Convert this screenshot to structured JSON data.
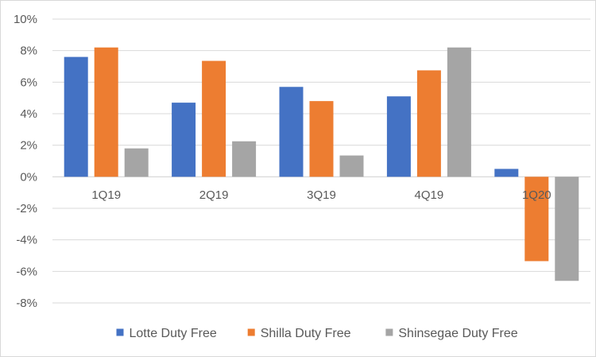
{
  "chart_data": {
    "type": "bar",
    "categories": [
      "1Q19",
      "2Q19",
      "3Q19",
      "4Q19",
      "1Q20"
    ],
    "series": [
      {
        "name": "Lotte Duty Free",
        "color": "#4472c4",
        "values": [
          7.6,
          4.7,
          5.7,
          5.1,
          0.5
        ]
      },
      {
        "name": "Shilla Duty Free",
        "color": "#ed7d31",
        "values": [
          8.2,
          7.35,
          4.8,
          6.75,
          -5.35
        ]
      },
      {
        "name": "Shinsegae Duty Free",
        "color": "#a5a5a5",
        "values": [
          1.8,
          2.25,
          1.35,
          8.2,
          -6.6
        ]
      }
    ],
    "y_ticks": [
      "10%",
      "8%",
      "6%",
      "4%",
      "2%",
      "0%",
      "-2%",
      "-4%",
      "-6%",
      "-8%"
    ],
    "ylim": [
      -8,
      10
    ],
    "grid": true,
    "legend_position": "bottom",
    "title": "",
    "xlabel": "",
    "ylabel": ""
  }
}
